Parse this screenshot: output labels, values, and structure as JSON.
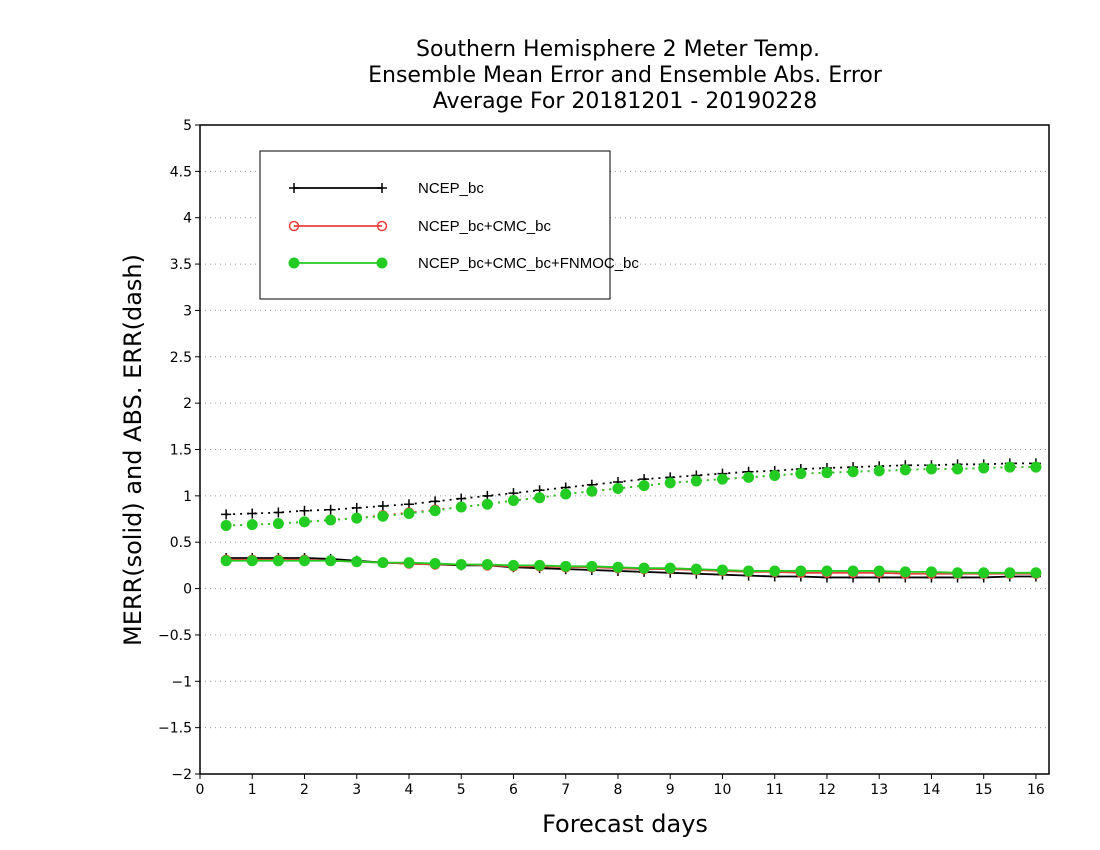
{
  "chart_data": {
    "type": "line",
    "title_lines": [
      "Southern Hemisphere 2 Meter Temp.",
      "Ensemble Mean Error and Ensemble Abs. Error",
      "Average For 20181201 - 20190228"
    ],
    "xlabel": "Forecast days",
    "ylabel": "MERR(solid) and ABS. ERR(dash)",
    "xlim": [
      0,
      16.25
    ],
    "ylim": [
      -2,
      5
    ],
    "x_ticks": [
      0,
      1,
      2,
      3,
      4,
      5,
      6,
      7,
      8,
      9,
      10,
      11,
      12,
      13,
      14,
      15,
      16
    ],
    "y_ticks": [
      -2,
      -1.5,
      -1,
      -0.5,
      0,
      0.5,
      1,
      1.5,
      2,
      2.5,
      3,
      3.5,
      4,
      4.5,
      5
    ],
    "y_tick_labels": [
      "−2",
      "−1.5",
      "−1",
      "−0.5",
      "0",
      "0.5",
      "1",
      "1.5",
      "2",
      "2.5",
      "3",
      "3.5",
      "4",
      "4.5",
      "5"
    ],
    "grid": "horizontal dotted",
    "legend_position": "top-left",
    "x": [
      0.5,
      1,
      1.5,
      2,
      2.5,
      3,
      3.5,
      4,
      4.5,
      5,
      5.5,
      6,
      6.5,
      7,
      7.5,
      8,
      8.5,
      9,
      9.5,
      10,
      10.5,
      11,
      11.5,
      12,
      12.5,
      13,
      13.5,
      14,
      14.5,
      15,
      15.5,
      16
    ],
    "series": [
      {
        "name": "NCEP_bc",
        "color": "#000000",
        "marker": "plus",
        "merr": [
          0.33,
          0.33,
          0.33,
          0.33,
          0.32,
          0.3,
          0.28,
          0.27,
          0.26,
          0.25,
          0.25,
          0.23,
          0.22,
          0.21,
          0.2,
          0.19,
          0.18,
          0.17,
          0.16,
          0.15,
          0.14,
          0.13,
          0.13,
          0.12,
          0.12,
          0.12,
          0.12,
          0.12,
          0.12,
          0.12,
          0.13,
          0.13
        ],
        "abs_err": [
          0.8,
          0.81,
          0.82,
          0.84,
          0.85,
          0.87,
          0.89,
          0.91,
          0.94,
          0.97,
          1.0,
          1.03,
          1.06,
          1.09,
          1.12,
          1.15,
          1.18,
          1.2,
          1.22,
          1.24,
          1.26,
          1.27,
          1.29,
          1.3,
          1.31,
          1.32,
          1.33,
          1.33,
          1.34,
          1.34,
          1.35,
          1.35
        ]
      },
      {
        "name": "NCEP_bc+CMC_bc",
        "color": "#e8413c",
        "marker": "open-circle",
        "merr": [
          0.31,
          0.31,
          0.31,
          0.31,
          0.3,
          0.29,
          0.28,
          0.27,
          0.26,
          0.26,
          0.25,
          0.24,
          0.24,
          0.23,
          0.23,
          0.22,
          0.21,
          0.21,
          0.2,
          0.19,
          0.18,
          0.18,
          0.17,
          0.17,
          0.17,
          0.17,
          0.16,
          0.16,
          0.16,
          0.16,
          0.16,
          0.16
        ],
        "abs_err": [
          0.68,
          0.69,
          0.7,
          0.72,
          0.74,
          0.76,
          0.79,
          0.82,
          0.85,
          0.88,
          0.91,
          0.95,
          0.98,
          1.02,
          1.05,
          1.08,
          1.11,
          1.14,
          1.16,
          1.18,
          1.2,
          1.22,
          1.24,
          1.25,
          1.26,
          1.27,
          1.28,
          1.29,
          1.29,
          1.3,
          1.31,
          1.31
        ]
      },
      {
        "name": "NCEP_bc+CMC_bc+FNMOC_bc",
        "color": "#22cc22",
        "marker": "filled-circle",
        "merr": [
          0.3,
          0.3,
          0.3,
          0.3,
          0.3,
          0.29,
          0.28,
          0.28,
          0.27,
          0.26,
          0.26,
          0.25,
          0.25,
          0.24,
          0.24,
          0.23,
          0.22,
          0.22,
          0.21,
          0.2,
          0.19,
          0.19,
          0.19,
          0.19,
          0.19,
          0.19,
          0.18,
          0.18,
          0.17,
          0.17,
          0.17,
          0.17
        ],
        "abs_err": [
          0.68,
          0.69,
          0.7,
          0.72,
          0.74,
          0.76,
          0.78,
          0.81,
          0.84,
          0.88,
          0.91,
          0.95,
          0.98,
          1.02,
          1.05,
          1.08,
          1.11,
          1.14,
          1.16,
          1.18,
          1.2,
          1.22,
          1.24,
          1.25,
          1.26,
          1.27,
          1.28,
          1.29,
          1.29,
          1.3,
          1.31,
          1.31
        ]
      }
    ]
  }
}
